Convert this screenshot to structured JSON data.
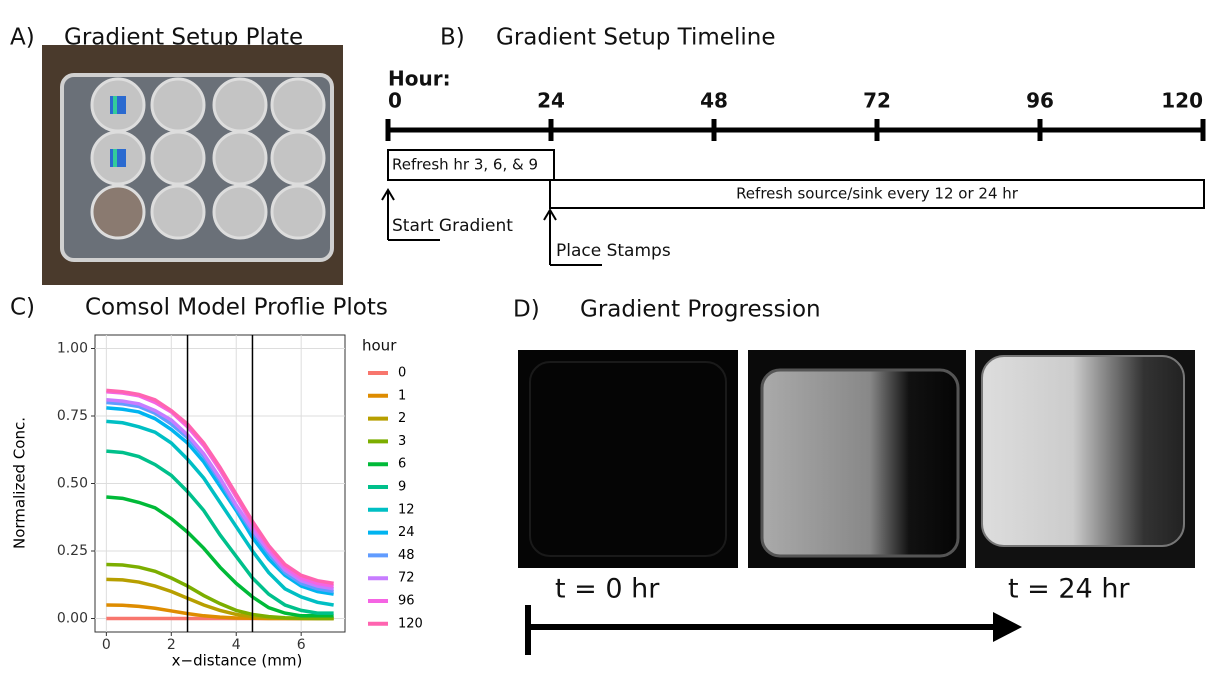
{
  "panel_a": {
    "label": "A)",
    "title": "Gradient Setup Plate"
  },
  "panel_b": {
    "label": "B)",
    "title": "Gradient Setup Timeline",
    "axis_title": "Hour:",
    "ticks": [
      0,
      24,
      48,
      72,
      96,
      120
    ],
    "refresh_early": "Refresh hr 3, 6, & 9",
    "refresh_late": "Refresh source/sink  every 12 or 24 hr",
    "start": "Start Gradient",
    "stamps": "Place Stamps"
  },
  "panel_c": {
    "label": "C)"
  },
  "chart_data": {
    "type": "line",
    "title": "Comsol Model Proflie Plots",
    "x_label": "x−distance (mm)",
    "y_label": "Normalized Conc.",
    "legend_title": "hour",
    "x": [
      0,
      0.5,
      1,
      1.5,
      2,
      2.5,
      3,
      3.5,
      4,
      4.5,
      5,
      5.5,
      6,
      6.5,
      7
    ],
    "xlim": [
      -0.35,
      7.35
    ],
    "xticks": [
      0,
      2,
      4,
      6
    ],
    "ylim": [
      -0.05,
      1.05
    ],
    "yticks": [
      {
        "value": 0,
        "label": "0.00"
      },
      {
        "value": 0.25,
        "label": "0.25"
      },
      {
        "value": 0.5,
        "label": "0.50"
      },
      {
        "value": 0.75,
        "label": "0.75"
      },
      {
        "value": 1,
        "label": "1.00"
      }
    ],
    "vlines": [
      2.5,
      4.5
    ],
    "grid": true,
    "series": [
      {
        "name": "0",
        "color": "#F8766D",
        "values": [
          0,
          0,
          0,
          0,
          0,
          0,
          0,
          0,
          0,
          0,
          0,
          0,
          0,
          0,
          0
        ]
      },
      {
        "name": "1",
        "color": "#DE8C00",
        "values": [
          0.05,
          0.049,
          0.045,
          0.038,
          0.028,
          0.018,
          0.01,
          0.005,
          0.002,
          0.001,
          0,
          0,
          0,
          0,
          0
        ]
      },
      {
        "name": "2",
        "color": "#B79F00",
        "values": [
          0.145,
          0.143,
          0.135,
          0.12,
          0.1,
          0.075,
          0.05,
          0.03,
          0.015,
          0.007,
          0.003,
          0.001,
          0,
          0,
          0
        ]
      },
      {
        "name": "3",
        "color": "#7CAE00",
        "values": [
          0.2,
          0.198,
          0.19,
          0.175,
          0.15,
          0.12,
          0.085,
          0.055,
          0.03,
          0.015,
          0.007,
          0.003,
          0.001,
          0,
          0
        ]
      },
      {
        "name": "6",
        "color": "#00BA38",
        "values": [
          0.45,
          0.445,
          0.43,
          0.41,
          0.37,
          0.32,
          0.26,
          0.19,
          0.13,
          0.08,
          0.04,
          0.02,
          0.01,
          0.01,
          0.01
        ]
      },
      {
        "name": "9",
        "color": "#00C08B",
        "values": [
          0.62,
          0.615,
          0.6,
          0.57,
          0.53,
          0.47,
          0.4,
          0.31,
          0.23,
          0.15,
          0.09,
          0.05,
          0.03,
          0.02,
          0.02
        ]
      },
      {
        "name": "12",
        "color": "#00BFC4",
        "values": [
          0.73,
          0.725,
          0.71,
          0.69,
          0.65,
          0.59,
          0.52,
          0.43,
          0.34,
          0.25,
          0.17,
          0.11,
          0.08,
          0.06,
          0.05
        ]
      },
      {
        "name": "24",
        "color": "#00B4F0",
        "values": [
          0.78,
          0.775,
          0.765,
          0.74,
          0.7,
          0.65,
          0.58,
          0.49,
          0.4,
          0.3,
          0.22,
          0.16,
          0.12,
          0.1,
          0.09
        ]
      },
      {
        "name": "48",
        "color": "#619CFF",
        "values": [
          0.8,
          0.795,
          0.785,
          0.76,
          0.72,
          0.67,
          0.6,
          0.51,
          0.41,
          0.32,
          0.24,
          0.17,
          0.13,
          0.11,
          0.1
        ]
      },
      {
        "name": "72",
        "color": "#C77CFF",
        "values": [
          0.81,
          0.805,
          0.795,
          0.77,
          0.735,
          0.68,
          0.61,
          0.52,
          0.42,
          0.33,
          0.25,
          0.18,
          0.14,
          0.12,
          0.11
        ]
      },
      {
        "name": "96",
        "color": "#F564E3",
        "values": [
          0.84,
          0.835,
          0.825,
          0.8,
          0.765,
          0.71,
          0.64,
          0.55,
          0.45,
          0.35,
          0.26,
          0.19,
          0.15,
          0.13,
          0.12
        ]
      },
      {
        "name": "120",
        "color": "#FF64B0",
        "values": [
          0.845,
          0.84,
          0.83,
          0.81,
          0.77,
          0.72,
          0.65,
          0.56,
          0.46,
          0.36,
          0.27,
          0.2,
          0.16,
          0.14,
          0.13
        ]
      }
    ]
  },
  "panel_d": {
    "label": "D)",
    "title": "Gradient Progression",
    "labels": [
      "t = 0 hr",
      "t = 24 hr"
    ]
  }
}
